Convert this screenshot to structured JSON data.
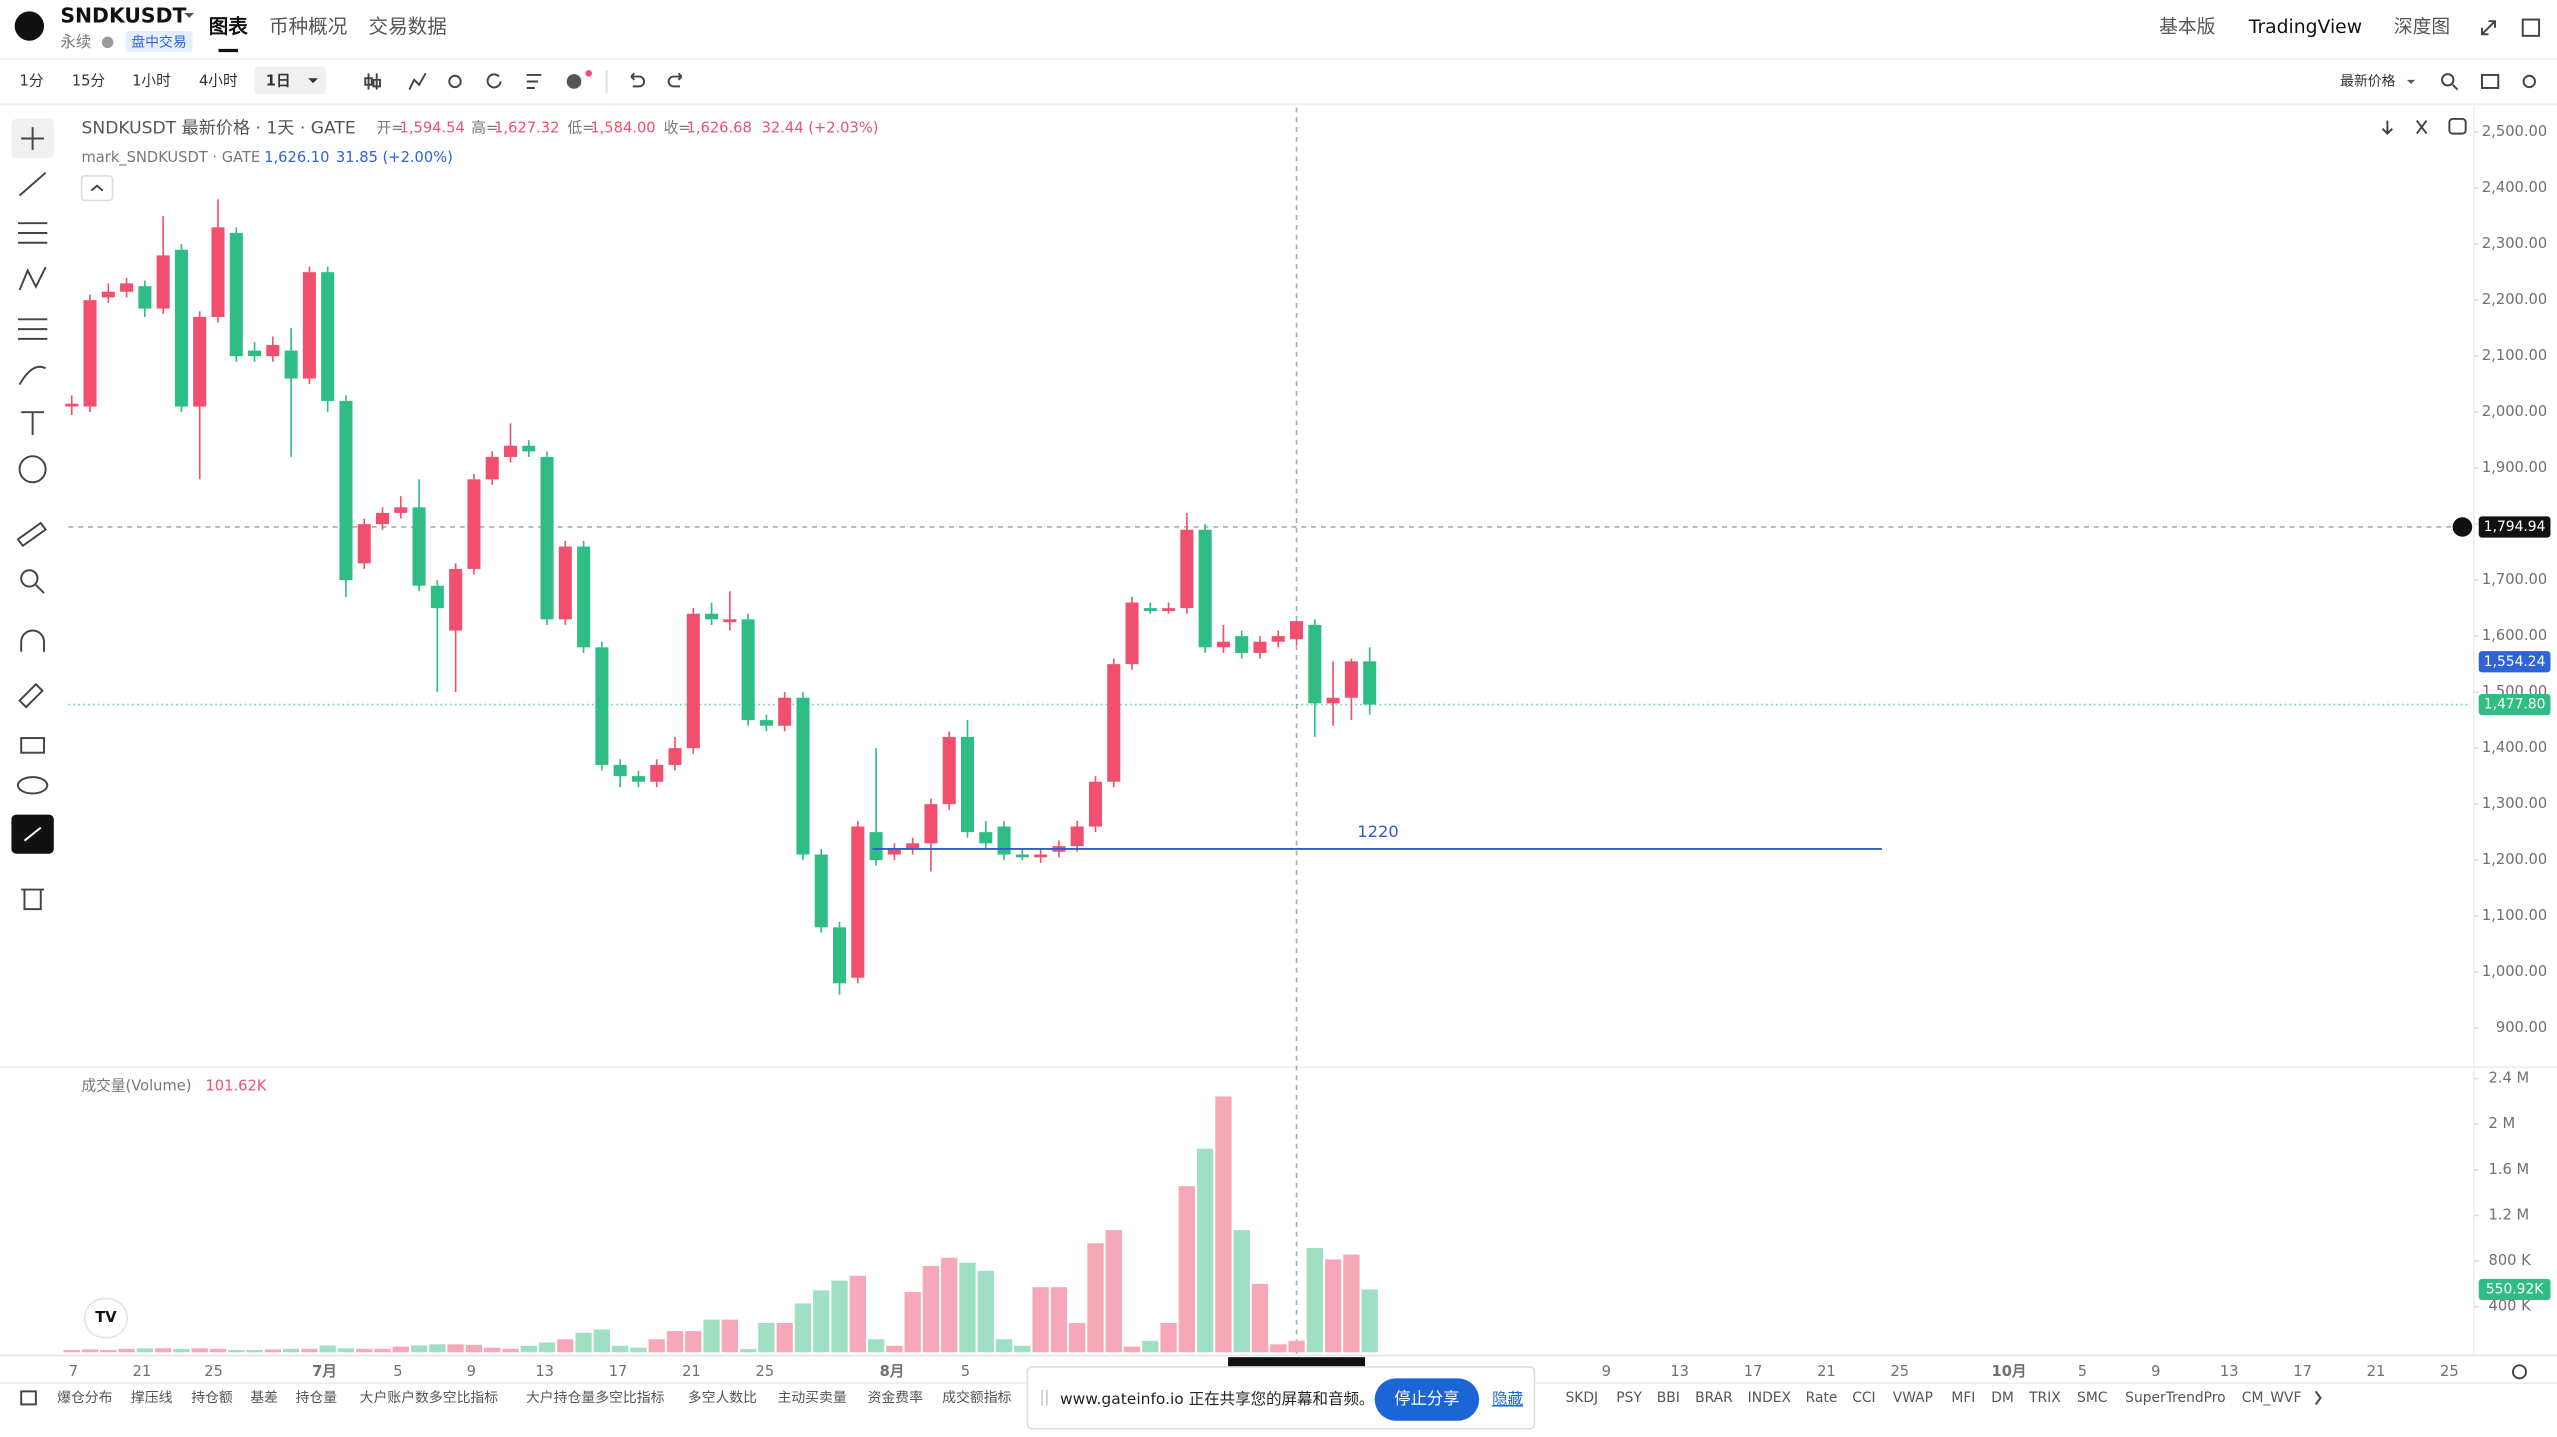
{
  "header": {
    "symbol": "SNDKUSDT",
    "contract": "永续",
    "badge": "盘中交易",
    "tabs": [
      "图表",
      "币种概况",
      "交易数据"
    ],
    "right_tabs": [
      "基本版",
      "TradingView",
      "深度图"
    ]
  },
  "toolbar": {
    "intervals": [
      "1分",
      "15分",
      "1小时",
      "4小时",
      "1日"
    ],
    "price_mode": "最新价格"
  },
  "legend": {
    "title": "SNDKUSDT 最新价格 · 1天 · GATE",
    "open_label": "开=",
    "open": "1,594.54",
    "high_label": "高=",
    "high": "1,627.32",
    "low_label": "低=",
    "low": "1,584.00",
    "close_label": "收=",
    "close": "1,626.68",
    "change": "32.44 (+2.03%)",
    "mark_title": "mark_SNDKUSDT · GATE",
    "mark_price": "1,626.10",
    "mark_change": "31.85 (+2.00%)",
    "volume_title": "成交量(Volume)",
    "volume_value": "101.62K"
  },
  "chart_data": {
    "type": "candlestick",
    "up_color": "#f0506e",
    "down_color": "#2ebd85",
    "up_volume_color": "#f7a8b8",
    "down_volume_color": "#9fdfc3",
    "open": [
      2010,
      2010,
      2205,
      2215,
      2225,
      2185,
      2290,
      2010,
      2170,
      2320,
      2110,
      2100,
      2110,
      2060,
      2250,
      2020,
      1730,
      1800,
      1820,
      1830,
      1690,
      1610,
      1720,
      1880,
      1920,
      1940,
      1920,
      1630,
      1760,
      1580,
      1370,
      1350,
      1340,
      1370,
      1400,
      1640,
      1625,
      1630,
      1450,
      1440,
      1490,
      1210,
      1080,
      990,
      1250,
      1210,
      1220,
      1230,
      1300,
      1420,
      1250,
      1260,
      1210,
      1205,
      1215,
      1225,
      1260,
      1340,
      1550,
      1650,
      1645,
      1650,
      1790,
      1580,
      1600,
      1570,
      1590,
      1594.54,
      1620,
      1480,
      1490,
      1555
    ],
    "close": [
      2015,
      2200,
      2215,
      2230,
      2185,
      2280,
      2010,
      2170,
      2330,
      2100,
      2100,
      2120,
      2060,
      2250,
      2020,
      1700,
      1800,
      1820,
      1830,
      1690,
      1650,
      1720,
      1880,
      1920,
      1940,
      1930,
      1630,
      1760,
      1580,
      1370,
      1350,
      1340,
      1370,
      1400,
      1640,
      1630,
      1630,
      1450,
      1440,
      1490,
      1210,
      1080,
      980,
      1260,
      1200,
      1220,
      1230,
      1300,
      1420,
      1250,
      1230,
      1210,
      1205,
      1210,
      1225,
      1260,
      1340,
      1550,
      1660,
      1645,
      1650,
      1790,
      1580,
      1590,
      1570,
      1590,
      1600,
      1626.68,
      1480,
      1490,
      1555,
      1477.8
    ],
    "high": [
      2030,
      2210,
      2230,
      2240,
      2235,
      2350,
      2300,
      2180,
      2380,
      2330,
      2125,
      2135,
      2150,
      2260,
      2260,
      2030,
      1810,
      1830,
      1850,
      1880,
      1700,
      1730,
      1890,
      1930,
      1980,
      1950,
      1930,
      1770,
      1770,
      1590,
      1380,
      1360,
      1380,
      1420,
      1650,
      1660,
      1680,
      1640,
      1460,
      1500,
      1500,
      1220,
      1090,
      1270,
      1400,
      1230,
      1240,
      1310,
      1430,
      1450,
      1270,
      1270,
      1220,
      1220,
      1235,
      1270,
      1350,
      1560,
      1670,
      1660,
      1660,
      1820,
      1800,
      1620,
      1610,
      1600,
      1610,
      1627.32,
      1630,
      1555,
      1560,
      1580
    ],
    "low": [
      1995,
      2000,
      2195,
      2205,
      2170,
      2175,
      2000,
      1880,
      2160,
      2090,
      2090,
      2090,
      1920,
      2050,
      2000,
      1670,
      1720,
      1790,
      1810,
      1680,
      1500,
      1500,
      1710,
      1870,
      1910,
      1920,
      1620,
      1620,
      1570,
      1360,
      1330,
      1330,
      1330,
      1360,
      1390,
      1620,
      1610,
      1440,
      1430,
      1430,
      1200,
      1070,
      960,
      980,
      1190,
      1200,
      1210,
      1180,
      1290,
      1240,
      1220,
      1200,
      1200,
      1195,
      1205,
      1215,
      1250,
      1330,
      1540,
      1640,
      1640,
      1640,
      1570,
      1570,
      1560,
      1560,
      1580,
      1584,
      1420,
      1440,
      1450,
      1460
    ],
    "volume": [
      20000,
      25000,
      20000,
      30000,
      35000,
      35000,
      30000,
      35000,
      30000,
      20000,
      20000,
      25000,
      30000,
      30000,
      60000,
      35000,
      30000,
      30000,
      50000,
      60000,
      70000,
      70000,
      65000,
      40000,
      30000,
      57000,
      86000,
      114000,
      171000,
      200000,
      57000,
      40000,
      114000,
      186000,
      186000,
      286000,
      286000,
      28000,
      257000,
      257000,
      428000,
      543000,
      628000,
      671000,
      114000,
      57000,
      528000,
      757000,
      829000,
      786000,
      714000,
      114000,
      57000,
      571000,
      571000,
      257000,
      957000,
      1071000,
      50000,
      100000,
      257000,
      1457000,
      1786000,
      2243000,
      1071000,
      600000,
      70000,
      101620,
      914000,
      814000,
      857000,
      550920
    ],
    "volume_last_label": "550.92K",
    "ylim": [
      839,
      2544
    ],
    "yticks": [
      {
        "value": 900,
        "label": "900.00"
      },
      {
        "value": 1000,
        "label": "1,000.00"
      },
      {
        "value": 1100,
        "label": "1,100.00"
      },
      {
        "value": 1200,
        "label": "1,200.00"
      },
      {
        "value": 1300,
        "label": "1,300.00"
      },
      {
        "value": 1400,
        "label": "1,400.00"
      },
      {
        "value": 1500,
        "label": "1,500.00"
      },
      {
        "value": 1600,
        "label": "1,600.00"
      },
      {
        "value": 1700,
        "label": "1,700.00"
      },
      {
        "value": 1800,
        "label": "1,800.00"
      },
      {
        "value": 1900,
        "label": "1,900.00"
      },
      {
        "value": 2000,
        "label": "2,000.00"
      },
      {
        "value": 2100,
        "label": "2,100.00"
      },
      {
        "value": 2200,
        "label": "2,200.00"
      },
      {
        "value": 2300,
        "label": "2,300.00"
      },
      {
        "value": 2400,
        "label": "2,400.00"
      },
      {
        "value": 2500,
        "label": "2,500.00"
      }
    ],
    "volume_ylim": [
      0,
      2500000
    ],
    "volume_ticks": [
      {
        "value": 400000,
        "label": "400 K"
      },
      {
        "value": 800000,
        "label": "800 K"
      },
      {
        "value": 1200000,
        "label": "1.2 M"
      },
      {
        "value": 1600000,
        "label": "1.6 M"
      },
      {
        "value": 2000000,
        "label": "2 M"
      },
      {
        "value": 2400000,
        "label": "2.4 M"
      }
    ],
    "xticks": [
      "7",
      "21",
      "25",
      "7月",
      "5",
      "9",
      "13",
      "17",
      "21",
      "25",
      "8月",
      "5",
      "9",
      "13",
      "17",
      "21",
      "25",
      "10月",
      "5",
      "9",
      "13",
      "17",
      "21",
      "25"
    ],
    "price_labels": [
      {
        "value": 1794.94,
        "label": "1,794.94",
        "color": "#111111"
      },
      {
        "value": 1554.24,
        "label": "1,554.24",
        "color": "#2f63d8"
      },
      {
        "value": 1477.8,
        "label": "1,477.80",
        "color": "#2ebd85"
      }
    ],
    "horizontal_line": {
      "value": 1220,
      "label": "1220",
      "color": "#2f5fc4"
    }
  },
  "indicators": [
    "爆仓分布",
    "撑压线",
    "持仓额",
    "基差",
    "持仓量",
    "大户账户数多空比指标",
    "大户持仓量多空比指标",
    "多空人数比",
    "主动买卖量",
    "资金费率",
    "成交额指标",
    "SKDJ",
    "PSY",
    "BBI",
    "BRAR",
    "INDEX",
    "Rate",
    "CCI",
    "VWAP",
    "MFI",
    "DM",
    "TRIX",
    "SMC",
    "SuperTrendPro",
    "CM_WVF"
  ],
  "share_popup": {
    "message": "www.gateinfo.io 正在共享您的屏幕和音频。",
    "stop": "停止分享",
    "hide": "隐藏"
  }
}
